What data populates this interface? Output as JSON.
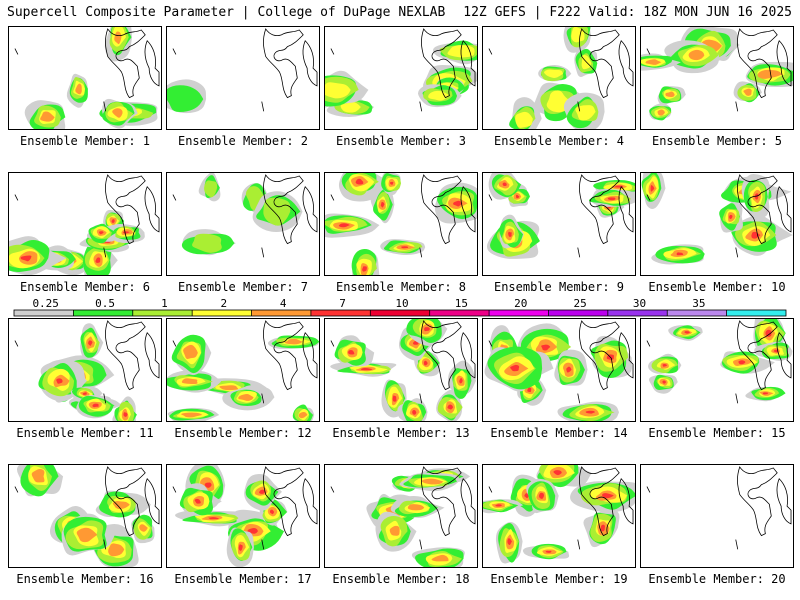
{
  "header": {
    "left": "Supercell Composite Parameter | College of DuPage NEXLAB",
    "right": "12Z GEFS | F222 Valid: 18Z MON JUN 16 2025"
  },
  "legend": {
    "labels": [
      "0.25",
      "0.5",
      "1",
      "2",
      "4",
      "7",
      "10",
      "15",
      "20",
      "25",
      "30",
      "35"
    ],
    "colors": [
      "#d0d0d0",
      "#33ee33",
      "#aaee33",
      "#ffff33",
      "#ff9933",
      "#ff3333",
      "#ee0033",
      "#ee0088",
      "#ee00ee",
      "#bb00ee",
      "#9933ee",
      "#bb88ee",
      "#33eeee"
    ]
  },
  "panels": [
    {
      "label": "Ensemble Member: 1"
    },
    {
      "label": "Ensemble Member: 2"
    },
    {
      "label": "Ensemble Member: 3"
    },
    {
      "label": "Ensemble Member: 4"
    },
    {
      "label": "Ensemble Member: 5"
    },
    {
      "label": "Ensemble Member: 6"
    },
    {
      "label": "Ensemble Member: 7"
    },
    {
      "label": "Ensemble Member: 8"
    },
    {
      "label": "Ensemble Member: 9"
    },
    {
      "label": "Ensemble Member: 10"
    },
    {
      "label": "Ensemble Member: 11"
    },
    {
      "label": "Ensemble Member: 12"
    },
    {
      "label": "Ensemble Member: 13"
    },
    {
      "label": "Ensemble Member: 14"
    },
    {
      "label": "Ensemble Member: 15"
    },
    {
      "label": "Ensemble Member: 16"
    },
    {
      "label": "Ensemble Member: 17"
    },
    {
      "label": "Ensemble Member: 18"
    },
    {
      "label": "Ensemble Member: 19"
    },
    {
      "label": "Ensemble Member: 20"
    }
  ]
}
